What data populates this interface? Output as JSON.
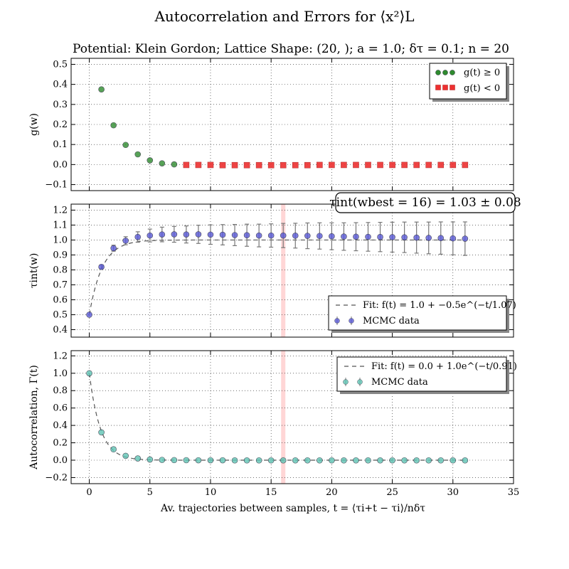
{
  "figure": {
    "title": "Autocorrelation and Errors for ⟨x²⟩L",
    "subtitle": "Potential: Klein Gordon; Lattice Shape: (20, ); a = 1.0; δτ = 0.1; n = 20",
    "xlabel": "Av. trajectories between samples, t = ⟨τi+t − τi⟩/nδτ"
  },
  "chart_data": [
    {
      "type": "scatter",
      "panel": "top",
      "ylabel": "g(w)",
      "xlim": [
        -1.5,
        35
      ],
      "ylim": [
        -0.13,
        0.53
      ],
      "x_ticks": [
        0,
        5,
        10,
        15,
        20,
        25,
        30,
        35
      ],
      "y_ticks": [
        -0.1,
        0.0,
        0.1,
        0.2,
        0.3,
        0.4,
        0.5
      ],
      "y_tick_labels": [
        "−0.1",
        "0.0",
        "0.1",
        "0.2",
        "0.3",
        "0.4",
        "0.5"
      ],
      "grid": true,
      "legend_position": "top-right",
      "series": [
        {
          "name": "g(t) ≥ 0",
          "color": "#2e8b2e",
          "marker": "circle",
          "x": [
            1,
            2,
            3,
            4,
            5,
            6,
            7
          ],
          "y": [
            0.375,
            0.196,
            0.098,
            0.051,
            0.021,
            0.006,
            0.001
          ]
        },
        {
          "name": "g(t) < 0",
          "color": "#ee3030",
          "marker": "square",
          "x": [
            8,
            9,
            10,
            11,
            12,
            13,
            14,
            15,
            16,
            17,
            18,
            19,
            20,
            21,
            22,
            23,
            24,
            25,
            26,
            27,
            28,
            29,
            30,
            31
          ],
          "y": [
            -0.002,
            -0.002,
            -0.002,
            -0.003,
            -0.003,
            -0.003,
            -0.003,
            -0.003,
            -0.003,
            -0.003,
            -0.003,
            -0.002,
            -0.002,
            -0.002,
            -0.002,
            -0.002,
            -0.002,
            -0.002,
            -0.002,
            -0.002,
            -0.002,
            -0.002,
            -0.002,
            -0.002
          ]
        }
      ]
    },
    {
      "type": "scatter",
      "panel": "middle",
      "ylabel": "τint(w)",
      "xlim": [
        -1.5,
        35
      ],
      "ylim": [
        0.35,
        1.24
      ],
      "x_ticks": [
        0,
        5,
        10,
        15,
        20,
        25,
        30,
        35
      ],
      "y_ticks": [
        0.4,
        0.5,
        0.6,
        0.7,
        0.8,
        0.9,
        1.0,
        1.1,
        1.2
      ],
      "y_tick_labels": [
        "0.4",
        "0.5",
        "0.6",
        "0.7",
        "0.8",
        "0.9",
        "1.0",
        "1.1",
        "1.2"
      ],
      "grid": true,
      "legend_position": "bottom-right",
      "annotation": "τint(wbest = 16) = 1.03 ± 0.08",
      "vline_x": 16,
      "vline_color": "#ffd6d6",
      "fit": {
        "label": "Fit: f(t) = 1.0 + −0.5e^(−t/1.07)",
        "a": 1.0,
        "b": -0.5,
        "tau": 1.07,
        "x_range": [
          0,
          31
        ]
      },
      "series": [
        {
          "name": "MCMC data",
          "color": "#5a5ad6",
          "marker": "circle",
          "x": [
            0,
            1,
            2,
            3,
            4,
            5,
            6,
            7,
            8,
            9,
            10,
            11,
            12,
            13,
            14,
            15,
            16,
            17,
            18,
            19,
            20,
            21,
            22,
            23,
            24,
            25,
            26,
            27,
            28,
            29,
            30,
            31
          ],
          "y": [
            0.5,
            0.82,
            0.945,
            0.995,
            1.02,
            1.03,
            1.037,
            1.038,
            1.037,
            1.038,
            1.036,
            1.035,
            1.033,
            1.032,
            1.03,
            1.03,
            1.03,
            1.029,
            1.028,
            1.027,
            1.025,
            1.023,
            1.022,
            1.021,
            1.02,
            1.019,
            1.018,
            1.016,
            1.014,
            1.013,
            1.011,
            1.009
          ],
          "yerr": [
            0.0,
            0.012,
            0.02,
            0.027,
            0.035,
            0.043,
            0.049,
            0.053,
            0.057,
            0.061,
            0.065,
            0.068,
            0.071,
            0.074,
            0.076,
            0.078,
            0.081,
            0.083,
            0.086,
            0.088,
            0.09,
            0.092,
            0.094,
            0.096,
            0.098,
            0.1,
            0.102,
            0.104,
            0.106,
            0.108,
            0.11,
            0.112
          ]
        }
      ]
    },
    {
      "type": "scatter",
      "panel": "bottom",
      "ylabel": "Autocorrelation, Γ(t)",
      "xlim": [
        -1.5,
        35
      ],
      "ylim": [
        -0.27,
        1.26
      ],
      "x_ticks": [
        0,
        5,
        10,
        15,
        20,
        25,
        30,
        35
      ],
      "y_ticks": [
        -0.2,
        0.0,
        0.2,
        0.4,
        0.6,
        0.8,
        1.0,
        1.2
      ],
      "y_tick_labels": [
        "−0.2",
        "0.0",
        "0.2",
        "0.4",
        "0.6",
        "0.8",
        "1.0",
        "1.2"
      ],
      "grid": true,
      "legend_position": "top-right",
      "vline_x": 16,
      "vline_color": "#ffd6d6",
      "fit": {
        "label": "Fit: f(t) = 0.0 + 1.0e^(−t/0.91)",
        "a": 0.0,
        "b": 1.0,
        "tau": 0.91,
        "x_range": [
          0,
          31
        ]
      },
      "series": [
        {
          "name": "MCMC data",
          "color": "#5fc4b4",
          "marker": "circle",
          "x": [
            0,
            1,
            2,
            3,
            4,
            5,
            6,
            7,
            8,
            9,
            10,
            11,
            12,
            13,
            14,
            15,
            16,
            17,
            18,
            19,
            20,
            21,
            22,
            23,
            24,
            25,
            26,
            27,
            28,
            29,
            30,
            31
          ],
          "y": [
            1.0,
            0.32,
            0.125,
            0.05,
            0.02,
            0.008,
            0.003,
            0.001,
            0.0,
            -0.001,
            -0.001,
            -0.001,
            -0.002,
            -0.002,
            -0.002,
            -0.002,
            -0.002,
            -0.002,
            -0.002,
            -0.002,
            -0.002,
            -0.002,
            -0.002,
            -0.002,
            -0.002,
            -0.002,
            -0.002,
            -0.002,
            -0.002,
            -0.002,
            -0.002,
            -0.002
          ]
        }
      ]
    }
  ]
}
